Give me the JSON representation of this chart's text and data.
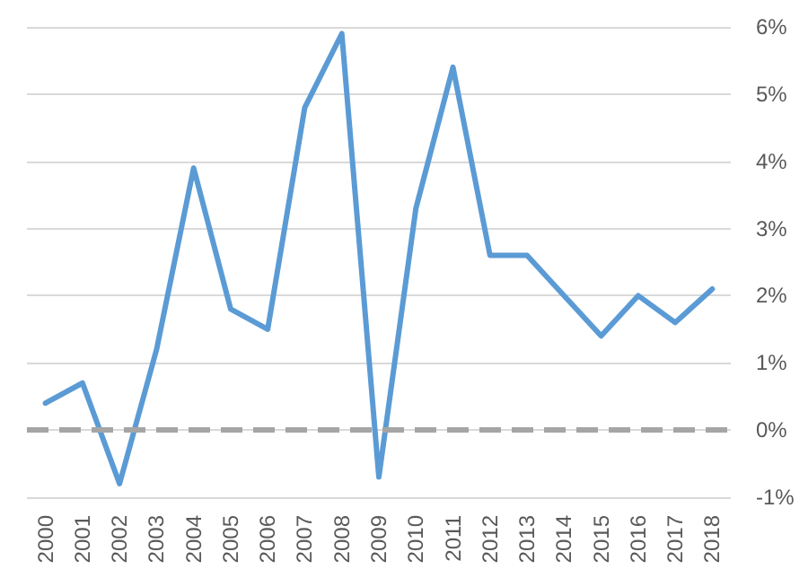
{
  "chart_data": {
    "type": "line",
    "categories": [
      "2000",
      "2001",
      "2002",
      "2003",
      "2004",
      "2005",
      "2006",
      "2007",
      "2008",
      "2009",
      "2010",
      "2011",
      "2012",
      "2013",
      "2014",
      "2015",
      "2016",
      "2017",
      "2018"
    ],
    "series": [
      {
        "color": "#5b9bd5",
        "values": [
          0.4,
          0.7,
          -0.8,
          1.2,
          3.9,
          1.8,
          1.5,
          4.8,
          5.9,
          -0.7,
          3.3,
          5.4,
          2.6,
          2.6,
          2.0,
          1.4,
          2.0,
          1.6,
          2.1
        ]
      }
    ],
    "ylim": [
      -1,
      6
    ],
    "yticks": [
      {
        "value": -1,
        "label": "-1%"
      },
      {
        "value": 0,
        "label": "0%"
      },
      {
        "value": 1,
        "label": "1%"
      },
      {
        "value": 2,
        "label": "2%"
      },
      {
        "value": 3,
        "label": "3%"
      },
      {
        "value": 4,
        "label": "4%"
      },
      {
        "value": 5,
        "label": "5%"
      },
      {
        "value": 6,
        "label": "6%"
      }
    ],
    "ref_lines": [
      {
        "axis": "y",
        "value": 0,
        "color": "#a5a5a5",
        "line_style": "dashed"
      }
    ],
    "grid": "y",
    "marker": "none",
    "line_style": "solid"
  }
}
